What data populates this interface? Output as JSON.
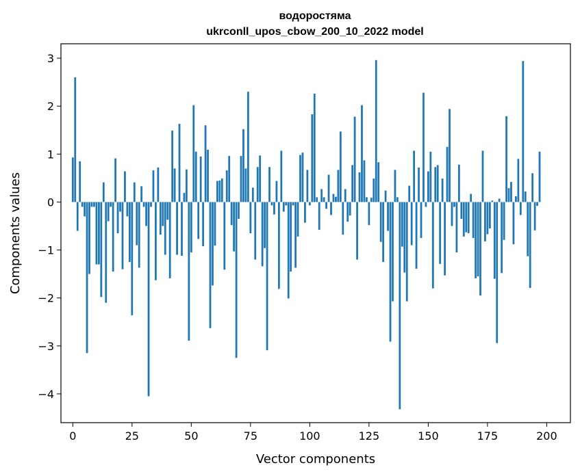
{
  "chart_data": {
    "type": "bar",
    "title": "водоростяма",
    "subtitle": "ukrconll_upos_cbow_200_10_2022 model",
    "xlabel": "Vector components",
    "ylabel": "Components values",
    "xlim": [
      -5,
      210
    ],
    "ylim": [
      -4.6,
      3.3
    ],
    "xticks": [
      0,
      25,
      50,
      75,
      100,
      125,
      150,
      175,
      200
    ],
    "xtick_labels": [
      "0",
      "25",
      "50",
      "75",
      "100",
      "125",
      "150",
      "175",
      "200"
    ],
    "yticks": [
      -4,
      -3,
      -2,
      -1,
      0,
      1,
      2,
      3
    ],
    "ytick_labels": [
      "−4",
      "−3",
      "−2",
      "−1",
      "0",
      "1",
      "2",
      "3"
    ],
    "bar_color": "#1f77b4",
    "values": [
      0.93,
      2.6,
      -0.6,
      0.85,
      -0.1,
      -0.3,
      -3.15,
      -1.5,
      -0.1,
      -0.1,
      -1.3,
      -1.3,
      -1.98,
      0.41,
      -2.1,
      -0.4,
      -0.1,
      -1.45,
      0.91,
      -0.65,
      -0.2,
      -1.4,
      0.64,
      -0.3,
      -1.25,
      -2.36,
      0.41,
      -0.9,
      -1.37,
      0.33,
      -0.1,
      -0.5,
      -4.05,
      -0.1,
      0.66,
      -1.63,
      0.72,
      -0.68,
      -0.5,
      -1.1,
      -0.37,
      -1.59,
      1.49,
      0.7,
      -1.1,
      1.63,
      -1.12,
      0.19,
      0.68,
      -2.89,
      -1.05,
      2.02,
      1.05,
      -0.77,
      0.95,
      -0.92,
      1.6,
      1.09,
      -2.63,
      -1.74,
      -0.91,
      0.44,
      0.45,
      0.49,
      -1.41,
      0.66,
      0.96,
      -0.48,
      -1.03,
      -3.25,
      -0.35,
      0.96,
      1.52,
      0.7,
      2.3,
      -0.65,
      0.3,
      -1.2,
      0.73,
      0.97,
      -1.34,
      -0.96,
      -3.09,
      0.73,
      -0.07,
      -0.26,
      0.44,
      -1.81,
      1.07,
      -0.2,
      -0.07,
      -2.01,
      -1.45,
      -0.07,
      -1.37,
      -0.72,
      0.98,
      1.03,
      -0.43,
      0.67,
      -0.07,
      1.83,
      2.26,
      0.1,
      -0.58,
      0.27,
      0.1,
      -0.14,
      0.57,
      -0.27,
      0.17,
      0.11,
      0.67,
      1.47,
      -0.68,
      0.27,
      -0.41,
      -0.28,
      0.77,
      1.78,
      -1.2,
      0.62,
      2.02,
      0.87,
      0.1,
      -0.48,
      0.09,
      0.49,
      2.96,
      0.83,
      -0.83,
      -1.25,
      0.24,
      -0.6,
      -2.91,
      -2.07,
      0.67,
      0.1,
      -4.32,
      -0.93,
      -1.47,
      -2.07,
      0.34,
      -0.9,
      1.07,
      -1.39,
      0.72,
      -0.75,
      2.28,
      -0.1,
      0.64,
      1.05,
      -1.8,
      0.73,
      0.77,
      -1.29,
      0.49,
      -1.53,
      1.15,
      1.94,
      -0.5,
      -0.1,
      -1.05,
      0.78,
      -0.35,
      -0.72,
      -0.63,
      -0.65,
      0.17,
      -0.75,
      -1.59,
      -1.55,
      -1.95,
      1.07,
      -0.82,
      -0.67,
      -0.55,
      0.03,
      -1.6,
      -2.94,
      0.07,
      -1.48,
      -0.79,
      1.79,
      0.29,
      0.42,
      -0.88,
      0.12,
      0.9,
      -0.27,
      2.94,
      0.22,
      -1.13,
      -1.79,
      0.6,
      -0.59,
      -0.08,
      1.05
    ]
  }
}
